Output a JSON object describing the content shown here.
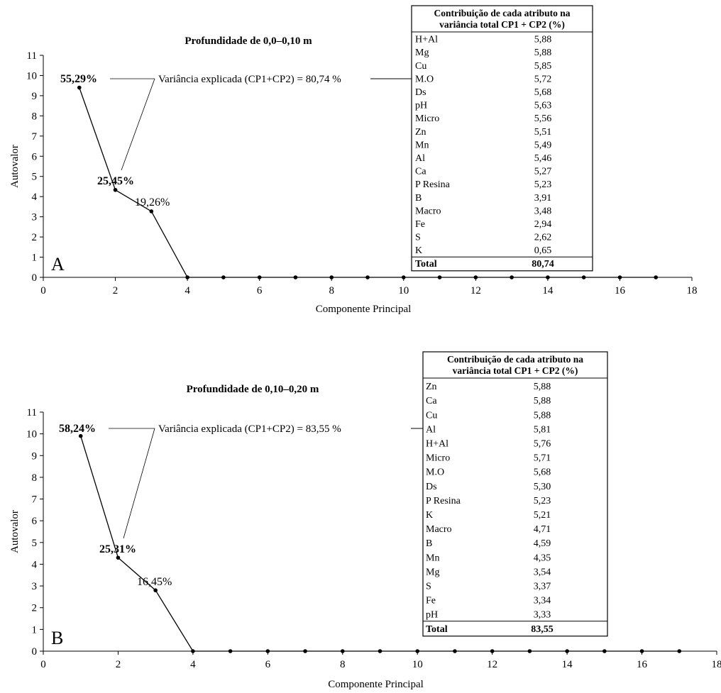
{
  "chart_data": [
    {
      "type": "line",
      "panel_letter": "A",
      "title": "Profundidade de 0,0–0,10 m",
      "xlabel": "Componente Principal",
      "ylabel": "Autovalor",
      "xlim": [
        0,
        18
      ],
      "ylim": [
        0,
        11
      ],
      "x_ticks": [
        "0",
        "2",
        "4",
        "6",
        "8",
        "10",
        "12",
        "14",
        "16",
        "18"
      ],
      "y_ticks": [
        "0",
        "1",
        "2",
        "3",
        "4",
        "5",
        "6",
        "7",
        "8",
        "9",
        "10",
        "11"
      ],
      "x": [
        1,
        2,
        3,
        4,
        5,
        6,
        7,
        8,
        9,
        10,
        11,
        12,
        13,
        14,
        15,
        16,
        17
      ],
      "y": [
        9.4,
        4.33,
        3.27,
        0,
        0,
        0,
        0,
        0,
        0,
        0,
        0,
        0,
        0,
        0,
        0,
        0,
        0
      ],
      "point_labels": [
        {
          "text": "55,29%",
          "x": 1,
          "bold": true
        },
        {
          "text": "25,45%",
          "x": 2,
          "bold": true
        },
        {
          "text": "19,26%",
          "x": 3,
          "bold": false
        }
      ],
      "annotation": "Variância explicada (CP1+CP2) = 80,74 %",
      "table": {
        "header": [
          "Contribuição de cada atributo na",
          "variância total CP1 + CP2 (%)"
        ],
        "rows": [
          [
            "H+Al",
            "5,88"
          ],
          [
            "Mg",
            "5,88"
          ],
          [
            "Cu",
            "5,85"
          ],
          [
            "M.O",
            "5,72"
          ],
          [
            "Ds",
            "5,68"
          ],
          [
            "pH",
            "5,63"
          ],
          [
            "Micro",
            "5,56"
          ],
          [
            "Zn",
            "5,51"
          ],
          [
            "Mn",
            "5,49"
          ],
          [
            "Al",
            "5,46"
          ],
          [
            "Ca",
            "5,27"
          ],
          [
            "P Resina",
            "5,23"
          ],
          [
            "B",
            "3,91"
          ],
          [
            "Macro",
            "3,48"
          ],
          [
            "Fe",
            "2,94"
          ],
          [
            "S",
            "2,62"
          ],
          [
            "K",
            "0,65"
          ]
        ],
        "total": [
          "Total",
          "80,74"
        ]
      }
    },
    {
      "type": "line",
      "panel_letter": "B",
      "title": "Profundidade de 0,10–0,20 m",
      "xlabel": "Componente Principal",
      "ylabel": "Autovalor",
      "xlim": [
        0,
        18
      ],
      "ylim": [
        0,
        11
      ],
      "x_ticks": [
        "0",
        "2",
        "4",
        "6",
        "8",
        "10",
        "12",
        "14",
        "16",
        "18"
      ],
      "y_ticks": [
        "0",
        "1",
        "2",
        "3",
        "4",
        "5",
        "6",
        "7",
        "8",
        "9",
        "10",
        "11"
      ],
      "x": [
        1,
        2,
        3,
        4,
        5,
        6,
        7,
        8,
        9,
        10,
        11,
        12,
        13,
        14,
        15,
        16,
        17
      ],
      "y": [
        9.9,
        4.3,
        2.8,
        0,
        0,
        0,
        0,
        0,
        0,
        0,
        0,
        0,
        0,
        0,
        0,
        0,
        0
      ],
      "point_labels": [
        {
          "text": "58,24%",
          "x": 1,
          "bold": true
        },
        {
          "text": "25,31%",
          "x": 2,
          "bold": true
        },
        {
          "text": "16,45%",
          "x": 3,
          "bold": false
        }
      ],
      "annotation": "Variância explicada (CP1+CP2) = 83,55 %",
      "table": {
        "header": [
          "Contribuição de cada atributo na",
          "variância total CP1 + CP2 (%)"
        ],
        "rows": [
          [
            "Zn",
            "5,88"
          ],
          [
            "Ca",
            "5,88"
          ],
          [
            "Cu",
            "5,88"
          ],
          [
            "Al",
            "5,81"
          ],
          [
            "H+Al",
            "5,76"
          ],
          [
            "Micro",
            "5,71"
          ],
          [
            "M.O",
            "5,68"
          ],
          [
            "Ds",
            "5,30"
          ],
          [
            "P Resina",
            "5,23"
          ],
          [
            "K",
            "5,21"
          ],
          [
            "Macro",
            "4,71"
          ],
          [
            "B",
            "4,59"
          ],
          [
            "Mn",
            "4,35"
          ],
          [
            "Mg",
            "3,54"
          ],
          [
            "S",
            "3,37"
          ],
          [
            "Fe",
            "3,34"
          ],
          [
            "pH",
            "3,33"
          ]
        ],
        "total": [
          "Total",
          "83,55"
        ]
      }
    }
  ]
}
